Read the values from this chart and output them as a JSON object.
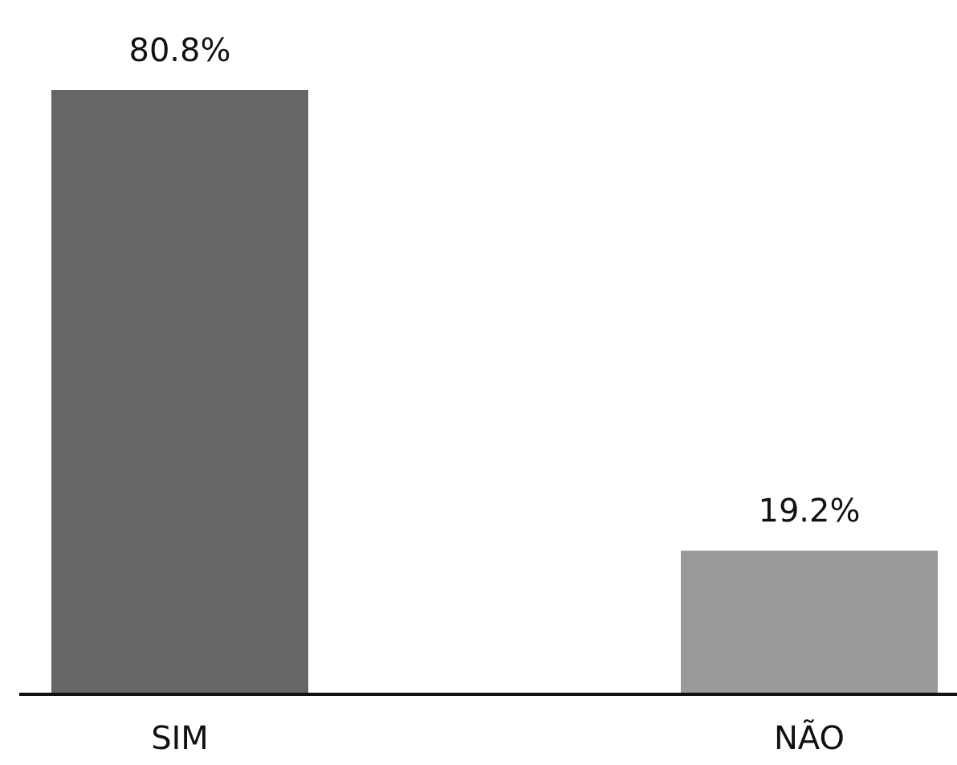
{
  "chart_data": {
    "type": "bar",
    "categories": [
      "SIM",
      "NÃO"
    ],
    "values": [
      80.8,
      19.2
    ],
    "colors": [
      "#666666",
      "#999999"
    ],
    "value_labels": [
      "80.8%",
      "19.2%"
    ]
  }
}
